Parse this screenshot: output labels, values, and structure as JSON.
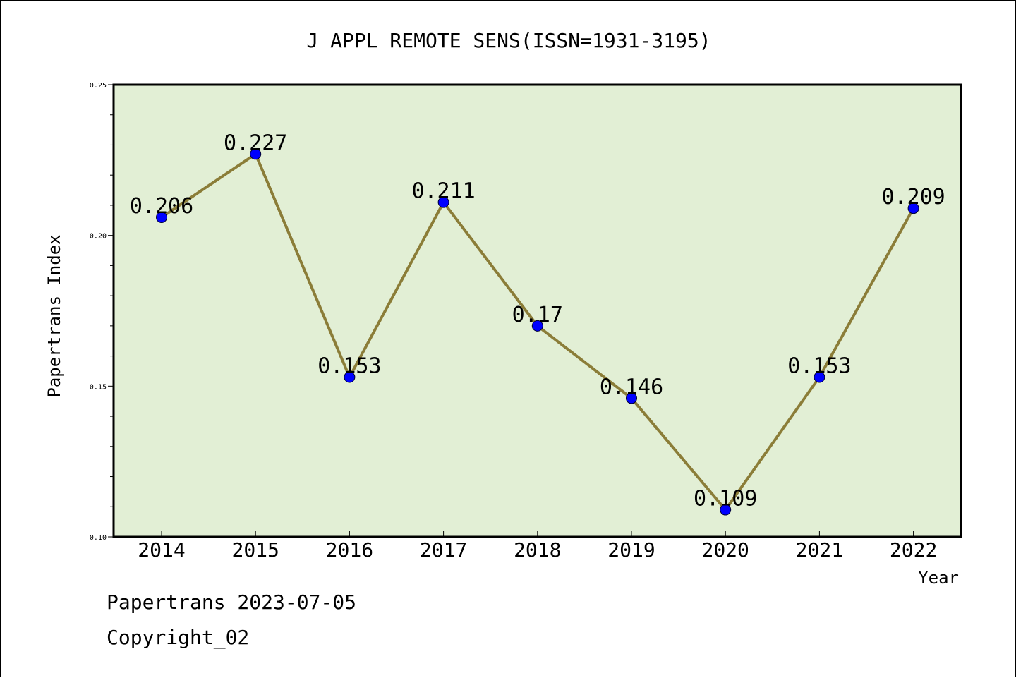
{
  "chart_data": {
    "type": "line",
    "title": "J APPL REMOTE SENS(ISSN=1931-3195)",
    "xlabel": "Year",
    "ylabel": "Papertrans Index",
    "categories": [
      "2014",
      "2015",
      "2016",
      "2017",
      "2018",
      "2019",
      "2020",
      "2021",
      "2022"
    ],
    "values": [
      0.206,
      0.227,
      0.153,
      0.211,
      0.17,
      0.146,
      0.109,
      0.153,
      0.209
    ],
    "value_labels": [
      "0.206",
      "0.227",
      "0.153",
      "0.211",
      "0.17",
      "0.146",
      "0.109",
      "0.153",
      "0.209"
    ],
    "ylim": [
      0.1,
      0.25
    ],
    "yticks": [
      "0.10",
      "0.15",
      "0.20",
      "0.25"
    ],
    "grid": false,
    "colors": {
      "plot_background": "#e2efd5",
      "line": "#8b7d38",
      "marker": "#0000ff"
    }
  },
  "footer": {
    "date_line": "Papertrans 2023-07-05",
    "copyright_line": "Copyright_02"
  }
}
